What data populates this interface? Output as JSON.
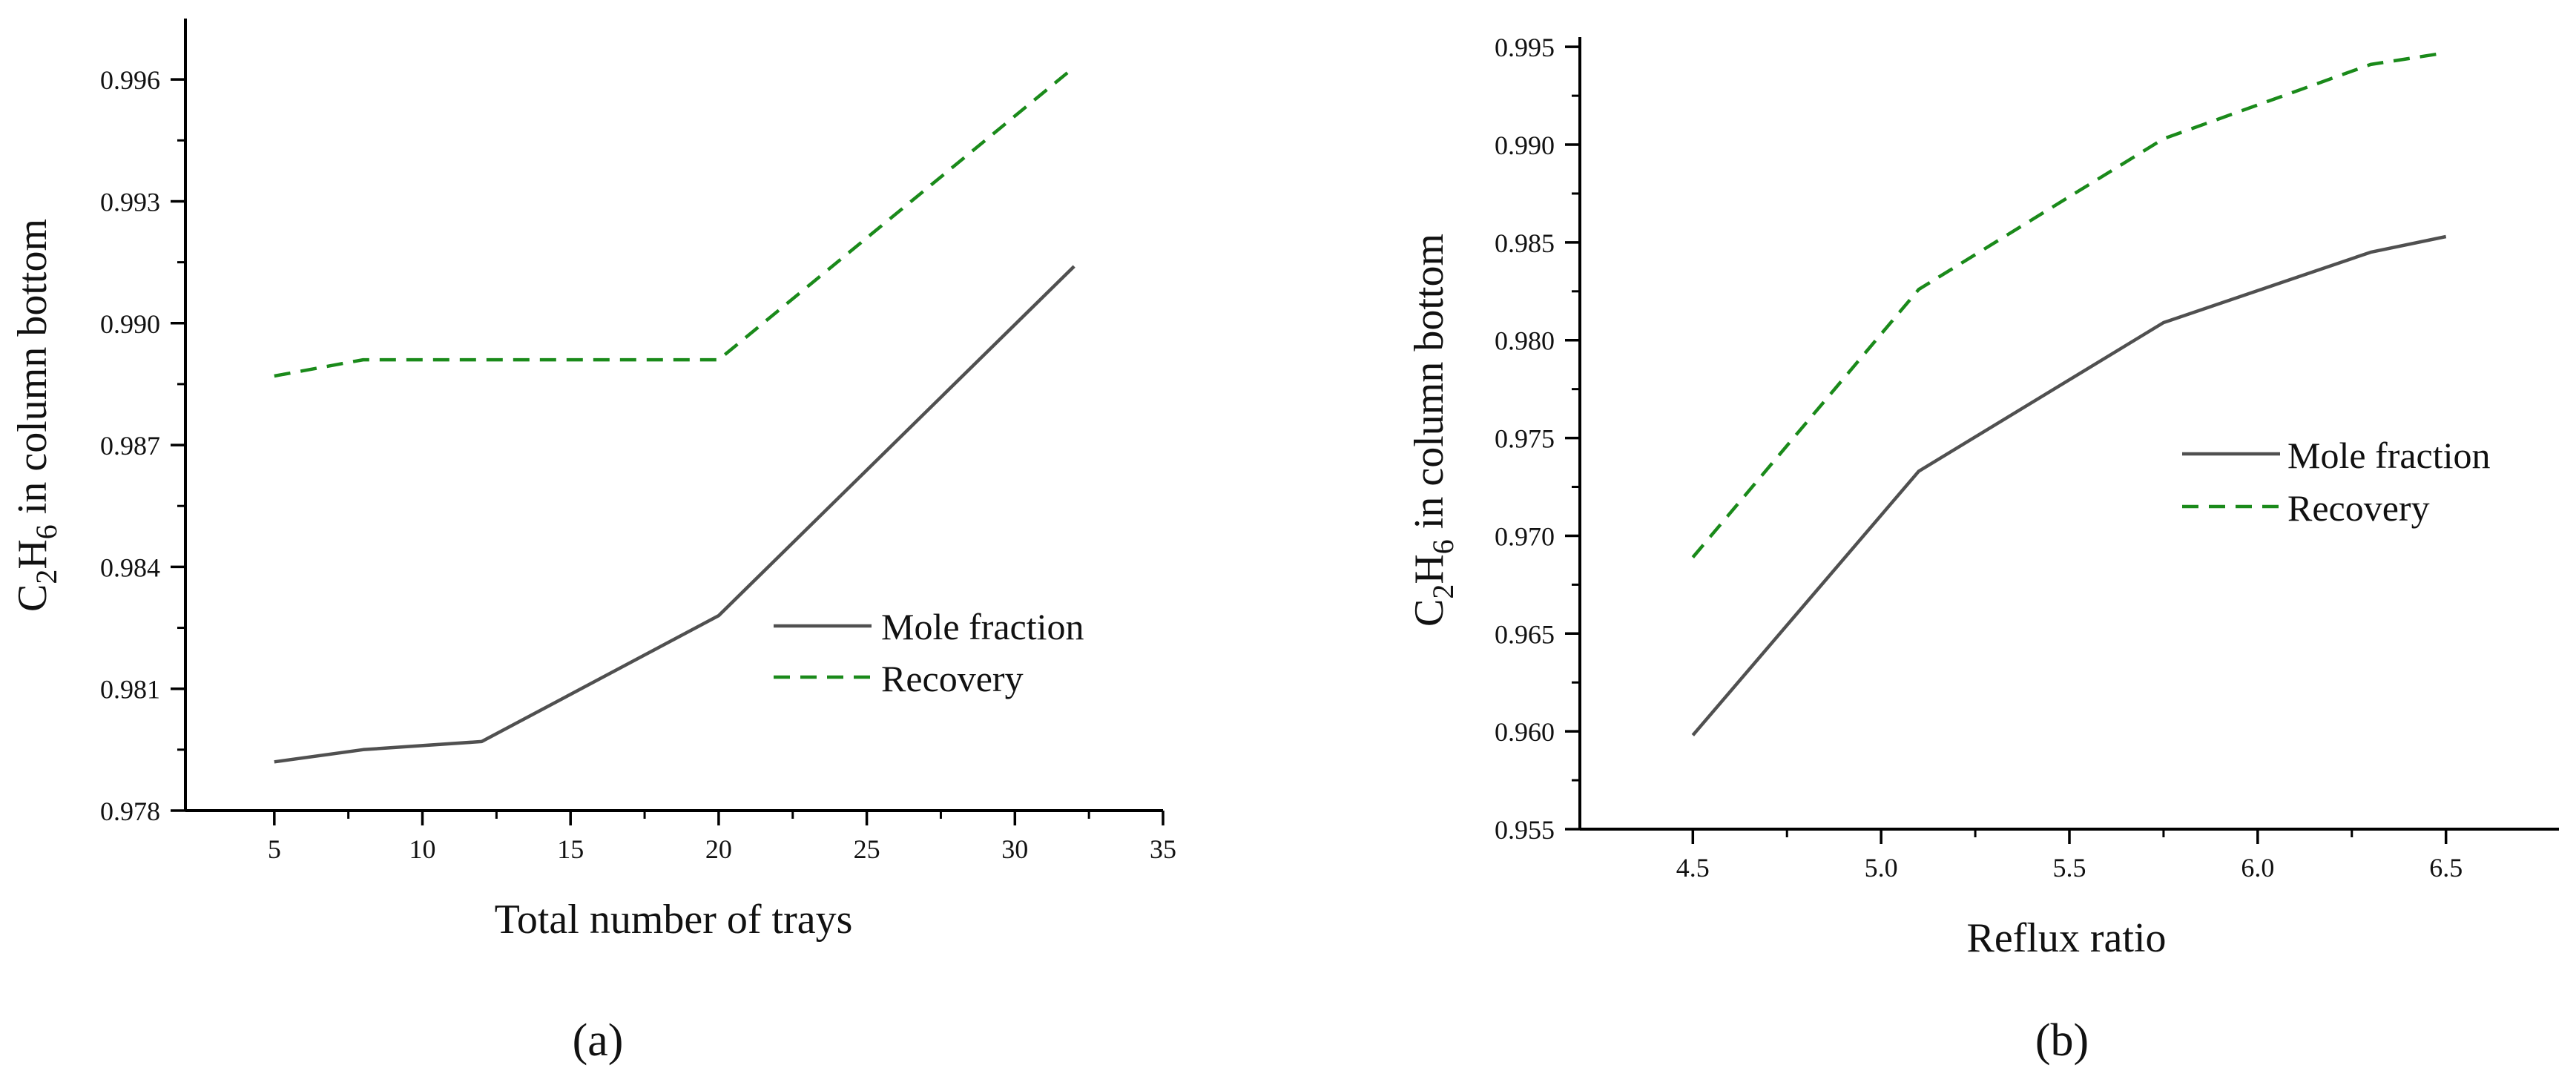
{
  "colors": {
    "mole_fraction": "#505050",
    "recovery": "#1a8a1a"
  },
  "chart_data": [
    {
      "type": "line",
      "panel_label": "(a)",
      "title": "",
      "xlabel": "Total number of trays",
      "ylabel": "C2H6 in column bottom",
      "ylabel_parts": [
        "C",
        "2",
        "H",
        "6",
        " in column bottom"
      ],
      "xlim": [
        2,
        35
      ],
      "ylim": [
        0.978,
        0.9975
      ],
      "xticks": [
        5,
        10,
        15,
        20,
        25,
        30,
        35
      ],
      "xtick_labels": [
        "5",
        "10",
        "15",
        "20",
        "25",
        "30",
        "35"
      ],
      "yticks": [
        0.978,
        0.981,
        0.984,
        0.987,
        0.99,
        0.993,
        0.996
      ],
      "ytick_labels": [
        "0.978",
        "0.981",
        "0.984",
        "0.987",
        "0.990",
        "0.993",
        "0.996"
      ],
      "legend_position": "center-right",
      "series": [
        {
          "name": "Mole fraction",
          "style": "solid",
          "x": [
            5,
            8,
            12,
            20,
            32
          ],
          "y": [
            0.9792,
            0.9795,
            0.9797,
            0.9828,
            0.9914
          ]
        },
        {
          "name": "Recovery",
          "style": "dashed",
          "x": [
            5,
            8,
            12,
            20,
            32
          ],
          "y": [
            0.9887,
            0.9891,
            0.9891,
            0.9891,
            0.9963
          ]
        }
      ]
    },
    {
      "type": "line",
      "panel_label": "(b)",
      "title": "",
      "xlabel": "Reflux ratio",
      "ylabel": "C2H6 in column bottom",
      "ylabel_parts": [
        "C",
        "2",
        "H",
        "6",
        " in column bottom"
      ],
      "xlim": [
        4.2,
        6.8
      ],
      "ylim": [
        0.955,
        0.9955
      ],
      "xticks": [
        4.5,
        5.0,
        5.5,
        6.0,
        6.5
      ],
      "xtick_labels": [
        "4.5",
        "5.0",
        "5.5",
        "6.0",
        "6.5"
      ],
      "yticks": [
        0.955,
        0.96,
        0.965,
        0.97,
        0.975,
        0.98,
        0.985,
        0.99,
        0.995
      ],
      "ytick_labels": [
        "0.955",
        "0.960",
        "0.965",
        "0.970",
        "0.975",
        "0.980",
        "0.985",
        "0.990",
        "0.995"
      ],
      "legend_position": "center-right",
      "series": [
        {
          "name": "Mole fraction",
          "style": "solid",
          "x": [
            4.5,
            5.1,
            5.75,
            6.3,
            6.5
          ],
          "y": [
            0.9598,
            0.9733,
            0.9809,
            0.9845,
            0.9853
          ]
        },
        {
          "name": "Recovery",
          "style": "dashed",
          "x": [
            4.5,
            5.1,
            5.75,
            6.3,
            6.5
          ],
          "y": [
            0.9689,
            0.9826,
            0.9903,
            0.9941,
            0.9947
          ]
        }
      ]
    }
  ]
}
